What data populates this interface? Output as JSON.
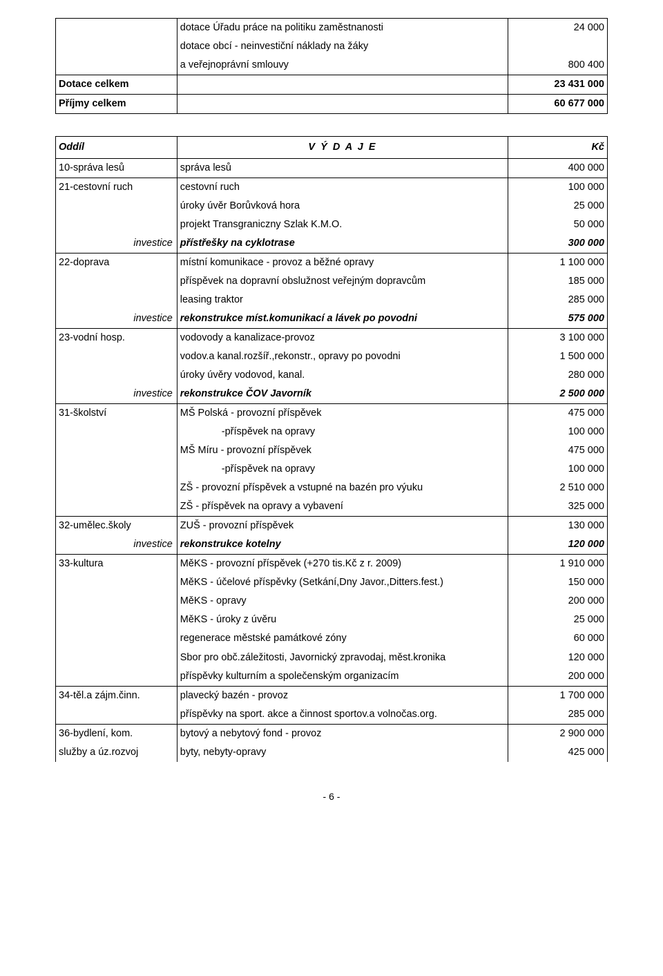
{
  "top": {
    "r1_c2a": "dotace Úřadu práce na politiku zaměstnanosti",
    "r1_c3a": "24 000",
    "r1_c2b": "dotace obcí - neinvestiční náklady na žáky",
    "r1_c2c": "a veřejnoprávní smlouvy",
    "r1_c3c": "800 400",
    "r2_c1": "Dotace celkem",
    "r2_c3": "23 431 000",
    "r3_c1": "Příjmy celkem",
    "r3_c3": "60 677 000"
  },
  "head": {
    "c1": "Oddíl",
    "c2": "V Ý D A J E",
    "c3": "Kč"
  },
  "rows": [
    {
      "c1": "10-správa lesů",
      "c2": "správa lesů",
      "c3": "400 000",
      "bb": true
    },
    {
      "c1": "21-cestovní ruch",
      "c2": "cestovní ruch",
      "c3": "100 000"
    },
    {
      "c1": "",
      "c2": "úroky úvěr Borůvková hora",
      "c3": "25 000"
    },
    {
      "c1": "",
      "c2": "projekt Transgraniczny Szlak K.M.O.",
      "c3": "50 000"
    },
    {
      "c1": "investice",
      "c1cls": "italic rtight",
      "c2": "přístřešky na cyklotrase",
      "c2cls": "italic bold",
      "c3": "300 000",
      "c3cls": "italic bold",
      "bb": true
    },
    {
      "c1": "22-doprava",
      "c2": "místní komunikace - provoz a běžné opravy",
      "c3": "1 100 000"
    },
    {
      "c1": "",
      "c2": "příspěvek na dopravní obslužnost veřejným dopravcům",
      "c3": "185 000"
    },
    {
      "c1": "",
      "c2": "leasing traktor",
      "c3": "285 000"
    },
    {
      "c1": "investice",
      "c1cls": "italic rtight",
      "c2": "rekonstrukce míst.komunikací a lávek po povodni",
      "c2cls": "italic bold",
      "c3": "575 000",
      "c3cls": "italic bold",
      "bb": true
    },
    {
      "c1": "23-vodní hosp.",
      "c2": "vodovody a kanalizace-provoz",
      "c3": "3 100 000"
    },
    {
      "c1": "",
      "c2": "vodov.a kanal.rozšíř.,rekonstr., opravy po povodni",
      "c3": "1 500 000"
    },
    {
      "c1": "",
      "c2": "úroky úvěry vodovod, kanal.",
      "c3": "280 000"
    },
    {
      "c1": "investice",
      "c1cls": "italic rtight",
      "c2": "rekonstrukce ČOV Javorník",
      "c2cls": "italic bold",
      "c3": "2 500 000",
      "c3cls": "italic bold",
      "bb": true
    },
    {
      "c1": "31-školství",
      "c2": "MŠ Polská - provozní příspěvek",
      "c3": "475 000"
    },
    {
      "c1": "",
      "c2": "-příspěvek na opravy",
      "c2cls": "indent",
      "c3": "100 000"
    },
    {
      "c1": "",
      "c2": "MŠ Míru - provozní příspěvek",
      "c3": "475 000"
    },
    {
      "c1": "",
      "c2": "-příspěvek na opravy",
      "c2cls": "indent",
      "c3": "100 000"
    },
    {
      "c1": "",
      "c2": "ZŠ - provozní příspěvek a vstupné na bazén pro výuku",
      "c3": "2 510 000"
    },
    {
      "c1": "",
      "c2": "ZŠ - příspěvek na opravy a vybavení",
      "c3": "325 000",
      "bb": true
    },
    {
      "c1": "32-umělec.školy",
      "c2": "ZUŠ - provozní příspěvek",
      "c3": "130 000"
    },
    {
      "c1": "investice",
      "c1cls": "italic rtight",
      "c2": "rekonstrukce kotelny",
      "c2cls": "italic bold",
      "c3": "120 000",
      "c3cls": "italic bold",
      "bb": true
    },
    {
      "c1": "33-kultura",
      "c2": "MěKS - provozní příspěvek (+270 tis.Kč z r. 2009)",
      "c3": "1 910 000"
    },
    {
      "c1": "",
      "c2": "MěKS - účelové příspěvky (Setkání,Dny Javor.,Ditters.fest.)",
      "c3": "150 000"
    },
    {
      "c1": "",
      "c2": "MěKS - opravy",
      "c3": "200 000"
    },
    {
      "c1": "",
      "c2": "MěKS - úroky z úvěru",
      "c3": "25 000"
    },
    {
      "c1": "",
      "c2": "regenerace městské památkové zóny",
      "c3": "60 000"
    },
    {
      "c1": "",
      "c2": "Sbor pro obč.záležitosti, Javornický zpravodaj, měst.kronika",
      "c3": "120 000"
    },
    {
      "c1": "",
      "c2": "příspěvky kulturním a společenským organizacím",
      "c3": "200 000",
      "bb": true
    },
    {
      "c1": "34-těl.a zájm.činn.",
      "c2": "plavecký bazén - provoz",
      "c3": "1 700 000"
    },
    {
      "c1": "",
      "c2": "příspěvky na sport. akce a činnost sportov.a volnočas.org.",
      "c3": "285 000",
      "bb": true
    },
    {
      "c1": "36-bydlení, kom.",
      "c2": "bytový a nebytový fond - provoz",
      "c3": "2 900 000"
    },
    {
      "c1": "služby a úz.rozvoj",
      "c2": "byty, nebyty-opravy",
      "c3": "425 000"
    }
  ],
  "footer": "- 6 -"
}
